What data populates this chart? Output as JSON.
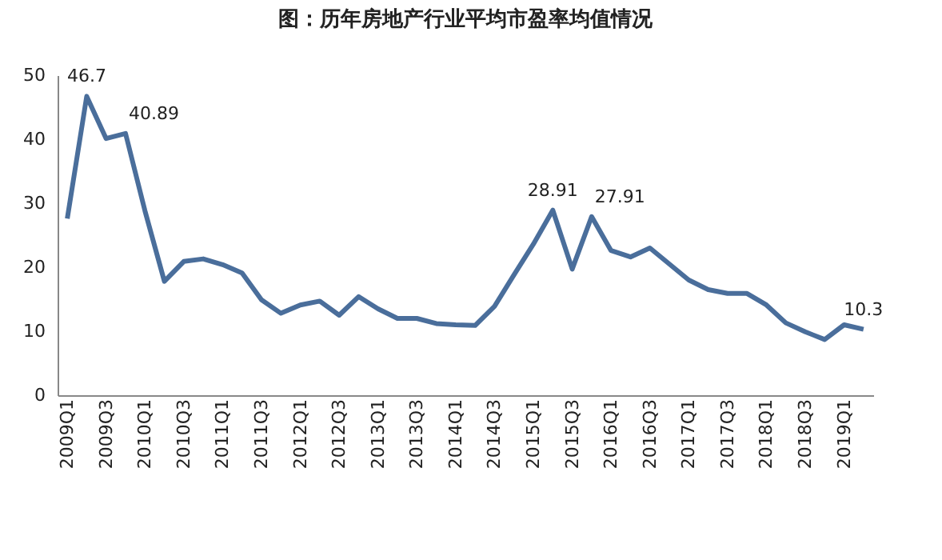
{
  "chart_data": {
    "type": "line",
    "title": "图：历年房地产行业平均市盈率均值情况",
    "categories": [
      "2009Q1",
      null,
      "2009Q3",
      null,
      "2010Q1",
      null,
      "2010Q3",
      null,
      "2011Q1",
      null,
      "2011Q3",
      null,
      "2012Q1",
      null,
      "2012Q3",
      null,
      "2013Q1",
      null,
      "2013Q3",
      null,
      "2014Q1",
      null,
      "2014Q3",
      null,
      "2015Q1",
      null,
      "2015Q3",
      null,
      "2016Q1",
      null,
      "2016Q3",
      null,
      "2017Q1",
      null,
      "2017Q3",
      null,
      "2018Q1",
      null,
      "2018Q3",
      null,
      "2019Q1",
      null
    ],
    "series": [
      {
        "color": "#4a6e9b",
        "values": [
          27.6,
          46.7,
          40.1,
          40.89,
          28.8,
          17.8,
          20.9,
          21.3,
          20.4,
          19.1,
          14.9,
          12.8,
          14.1,
          14.7,
          12.5,
          15.4,
          13.5,
          12.0,
          12.0,
          11.2,
          11.0,
          10.9,
          13.9,
          18.8,
          23.6,
          28.91,
          19.7,
          27.91,
          22.6,
          21.6,
          23.0,
          20.5,
          18.0,
          16.5,
          15.9,
          15.9,
          14.1,
          11.3,
          9.9,
          8.7,
          11.0,
          10.3
        ],
        "value_labels": [
          null,
          "46.7",
          null,
          "40.89",
          null,
          null,
          null,
          null,
          null,
          null,
          null,
          null,
          null,
          null,
          null,
          null,
          null,
          null,
          null,
          null,
          null,
          null,
          null,
          null,
          null,
          "28.91",
          null,
          "27.91",
          null,
          null,
          null,
          null,
          null,
          null,
          null,
          null,
          null,
          null,
          null,
          null,
          null,
          "10.3"
        ]
      }
    ],
    "ylim": [
      0,
      50
    ],
    "yticks": [
      0,
      10,
      20,
      30,
      40,
      50
    ],
    "grid": false,
    "legend": false,
    "marker": "none",
    "line_style": "solid"
  }
}
